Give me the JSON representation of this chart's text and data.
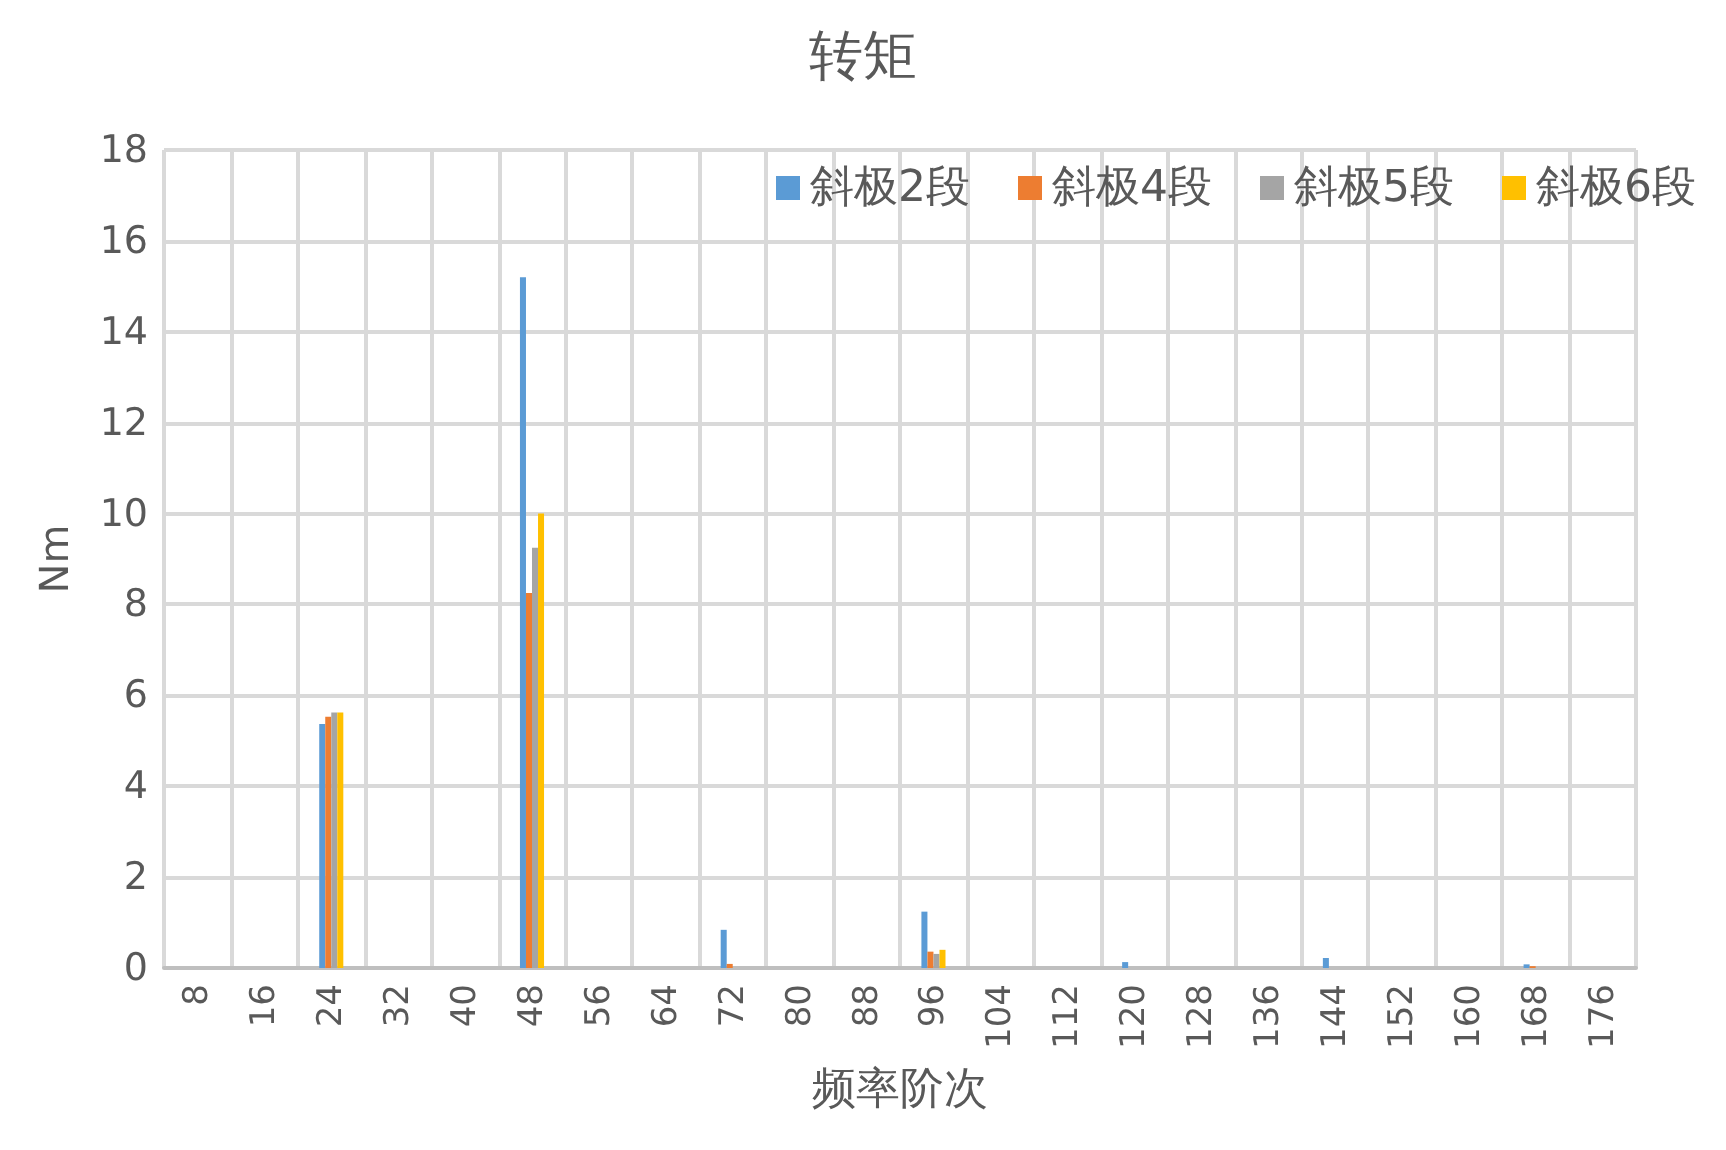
{
  "chart_data": {
    "type": "bar",
    "title": "转矩",
    "xlabel": "频率阶次",
    "ylabel": "Nm",
    "categories": [
      "8",
      "16",
      "24",
      "32",
      "40",
      "48",
      "56",
      "64",
      "72",
      "80",
      "88",
      "96",
      "104",
      "112",
      "120",
      "128",
      "136",
      "144",
      "152",
      "160",
      "168",
      "176"
    ],
    "series": [
      {
        "name": "斜极2段",
        "color": "#5b9bd5",
        "values": [
          0,
          0,
          5.37,
          0,
          0,
          15.2,
          0,
          0,
          0.84,
          0,
          0,
          1.24,
          0,
          0,
          0.13,
          0,
          0,
          0.22,
          0,
          0,
          0.08,
          0
        ]
      },
      {
        "name": "斜极4段",
        "color": "#ed7d31",
        "values": [
          0,
          0,
          5.53,
          0,
          0,
          8.25,
          0,
          0,
          0.09,
          0,
          0,
          0.36,
          0,
          0,
          0,
          0,
          0,
          0,
          0,
          0,
          0.04,
          0
        ]
      },
      {
        "name": "斜极5段",
        "color": "#a5a5a5",
        "values": [
          0,
          0,
          5.62,
          0,
          0,
          9.25,
          0,
          0,
          0,
          0,
          0,
          0.31,
          0,
          0,
          0,
          0,
          0,
          0,
          0,
          0,
          0,
          0
        ]
      },
      {
        "name": "斜极6段",
        "color": "#ffc000",
        "values": [
          0,
          0,
          5.62,
          0,
          0,
          10.0,
          0,
          0,
          0,
          0,
          0,
          0.4,
          0,
          0,
          0,
          0,
          0,
          0,
          0,
          0,
          0,
          0
        ]
      }
    ],
    "ylim": [
      0,
      18
    ],
    "yticks": [
      0,
      2,
      4,
      6,
      8,
      10,
      12,
      14,
      16,
      18
    ],
    "grid": true,
    "legend": "top right"
  }
}
